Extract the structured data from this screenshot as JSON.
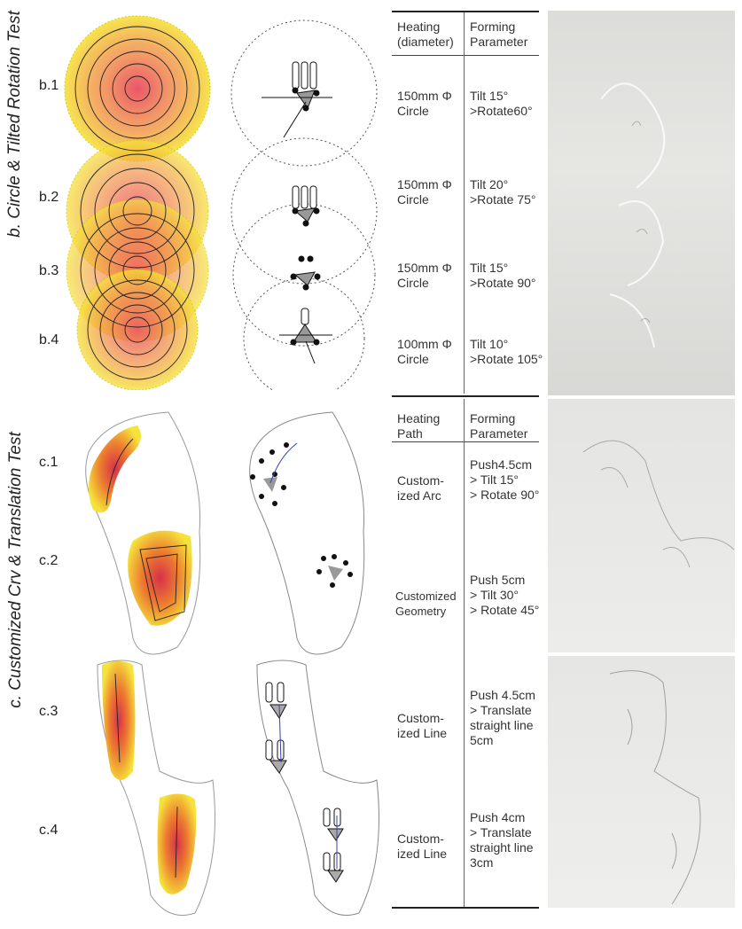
{
  "sections": {
    "b": {
      "title": "b. Circle & Tilted Rotation Test",
      "labels": [
        "b.1",
        "b.2",
        "b.3",
        "b.4"
      ],
      "table": {
        "headers": [
          "Heating\n(diameter)",
          "Forming\nParameter"
        ],
        "rows": [
          {
            "heating": "150mm Φ\nCircle",
            "forming": "Tilt 15°\n>Rotate60°"
          },
          {
            "heating": "150mm Φ\nCircle",
            "forming": "Tilt 20°\n>Rotate 75°"
          },
          {
            "heating": "150mm Φ\nCircle",
            "forming": "Tilt 15°\n>Rotate 90°"
          },
          {
            "heating": "100mm Φ\nCircle",
            "forming": "Tilt 10°\n>Rotate 105°"
          }
        ]
      }
    },
    "c": {
      "title": "c. Customized Crv & Translation Test",
      "labels": [
        "c.1",
        "c.2",
        "c.3",
        "c.4"
      ],
      "table": {
        "headers": [
          "Heating\nPath",
          "Forming\nParameter"
        ],
        "rows": [
          {
            "heating": "Custom-\nized Arc",
            "forming": "Push4.5cm\n> Tilt 15°\n> Rotate 90°"
          },
          {
            "heating": "Customized\nGeometry",
            "forming": "Push 5cm\n> Tilt 30°\n> Rotate 45°"
          },
          {
            "heating": "Custom-\nized Line",
            "forming": "Push 4.5cm\n> Translate\nstraight line\n5cm"
          },
          {
            "heating": "Custom-\nized Line",
            "forming": "Push 4cm\n> Translate\nstraight line\n3cm"
          }
        ]
      }
    }
  },
  "colors": {
    "heat_core": "#e8445a",
    "heat_mid": "#f08a3a",
    "heat_edge": "#f5e23a",
    "line": "#222222",
    "arrow": "#3344aa"
  }
}
